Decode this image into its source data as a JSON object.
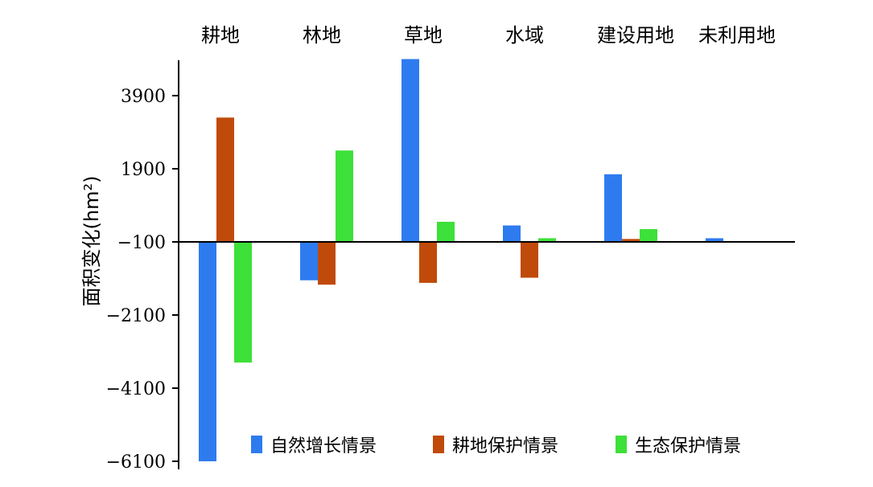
{
  "chart_data": {
    "type": "bar",
    "categories": [
      "耕地",
      "林地",
      "草地",
      "水域",
      "建设用地",
      "未利用地"
    ],
    "series": [
      {
        "name": "自然增长情景",
        "color": "#2e7bf0",
        "values": [
          -6100,
          -1150,
          4900,
          350,
          1750,
          0
        ]
      },
      {
        "name": "耕地保护情景",
        "color": "#c04a0a",
        "values": [
          3300,
          -1270,
          -1220,
          -1080,
          -20,
          null
        ]
      },
      {
        "name": "生态保护情景",
        "color": "#3ee03a",
        "values": [
          -3400,
          2400,
          450,
          0,
          250,
          null
        ]
      }
    ],
    "ylabel": "面积变化(hm²)",
    "yticks": [
      3900,
      1900,
      -100,
      -2100,
      -4100,
      -6100
    ],
    "yticklabels": [
      "3900",
      "1900",
      "−100",
      "−2100",
      "−4100",
      "−6100"
    ],
    "ylim": [
      -6100,
      4900
    ],
    "baseline": -100,
    "xaxis_position": "top",
    "legend_position": "bottom-right",
    "grid": false
  }
}
